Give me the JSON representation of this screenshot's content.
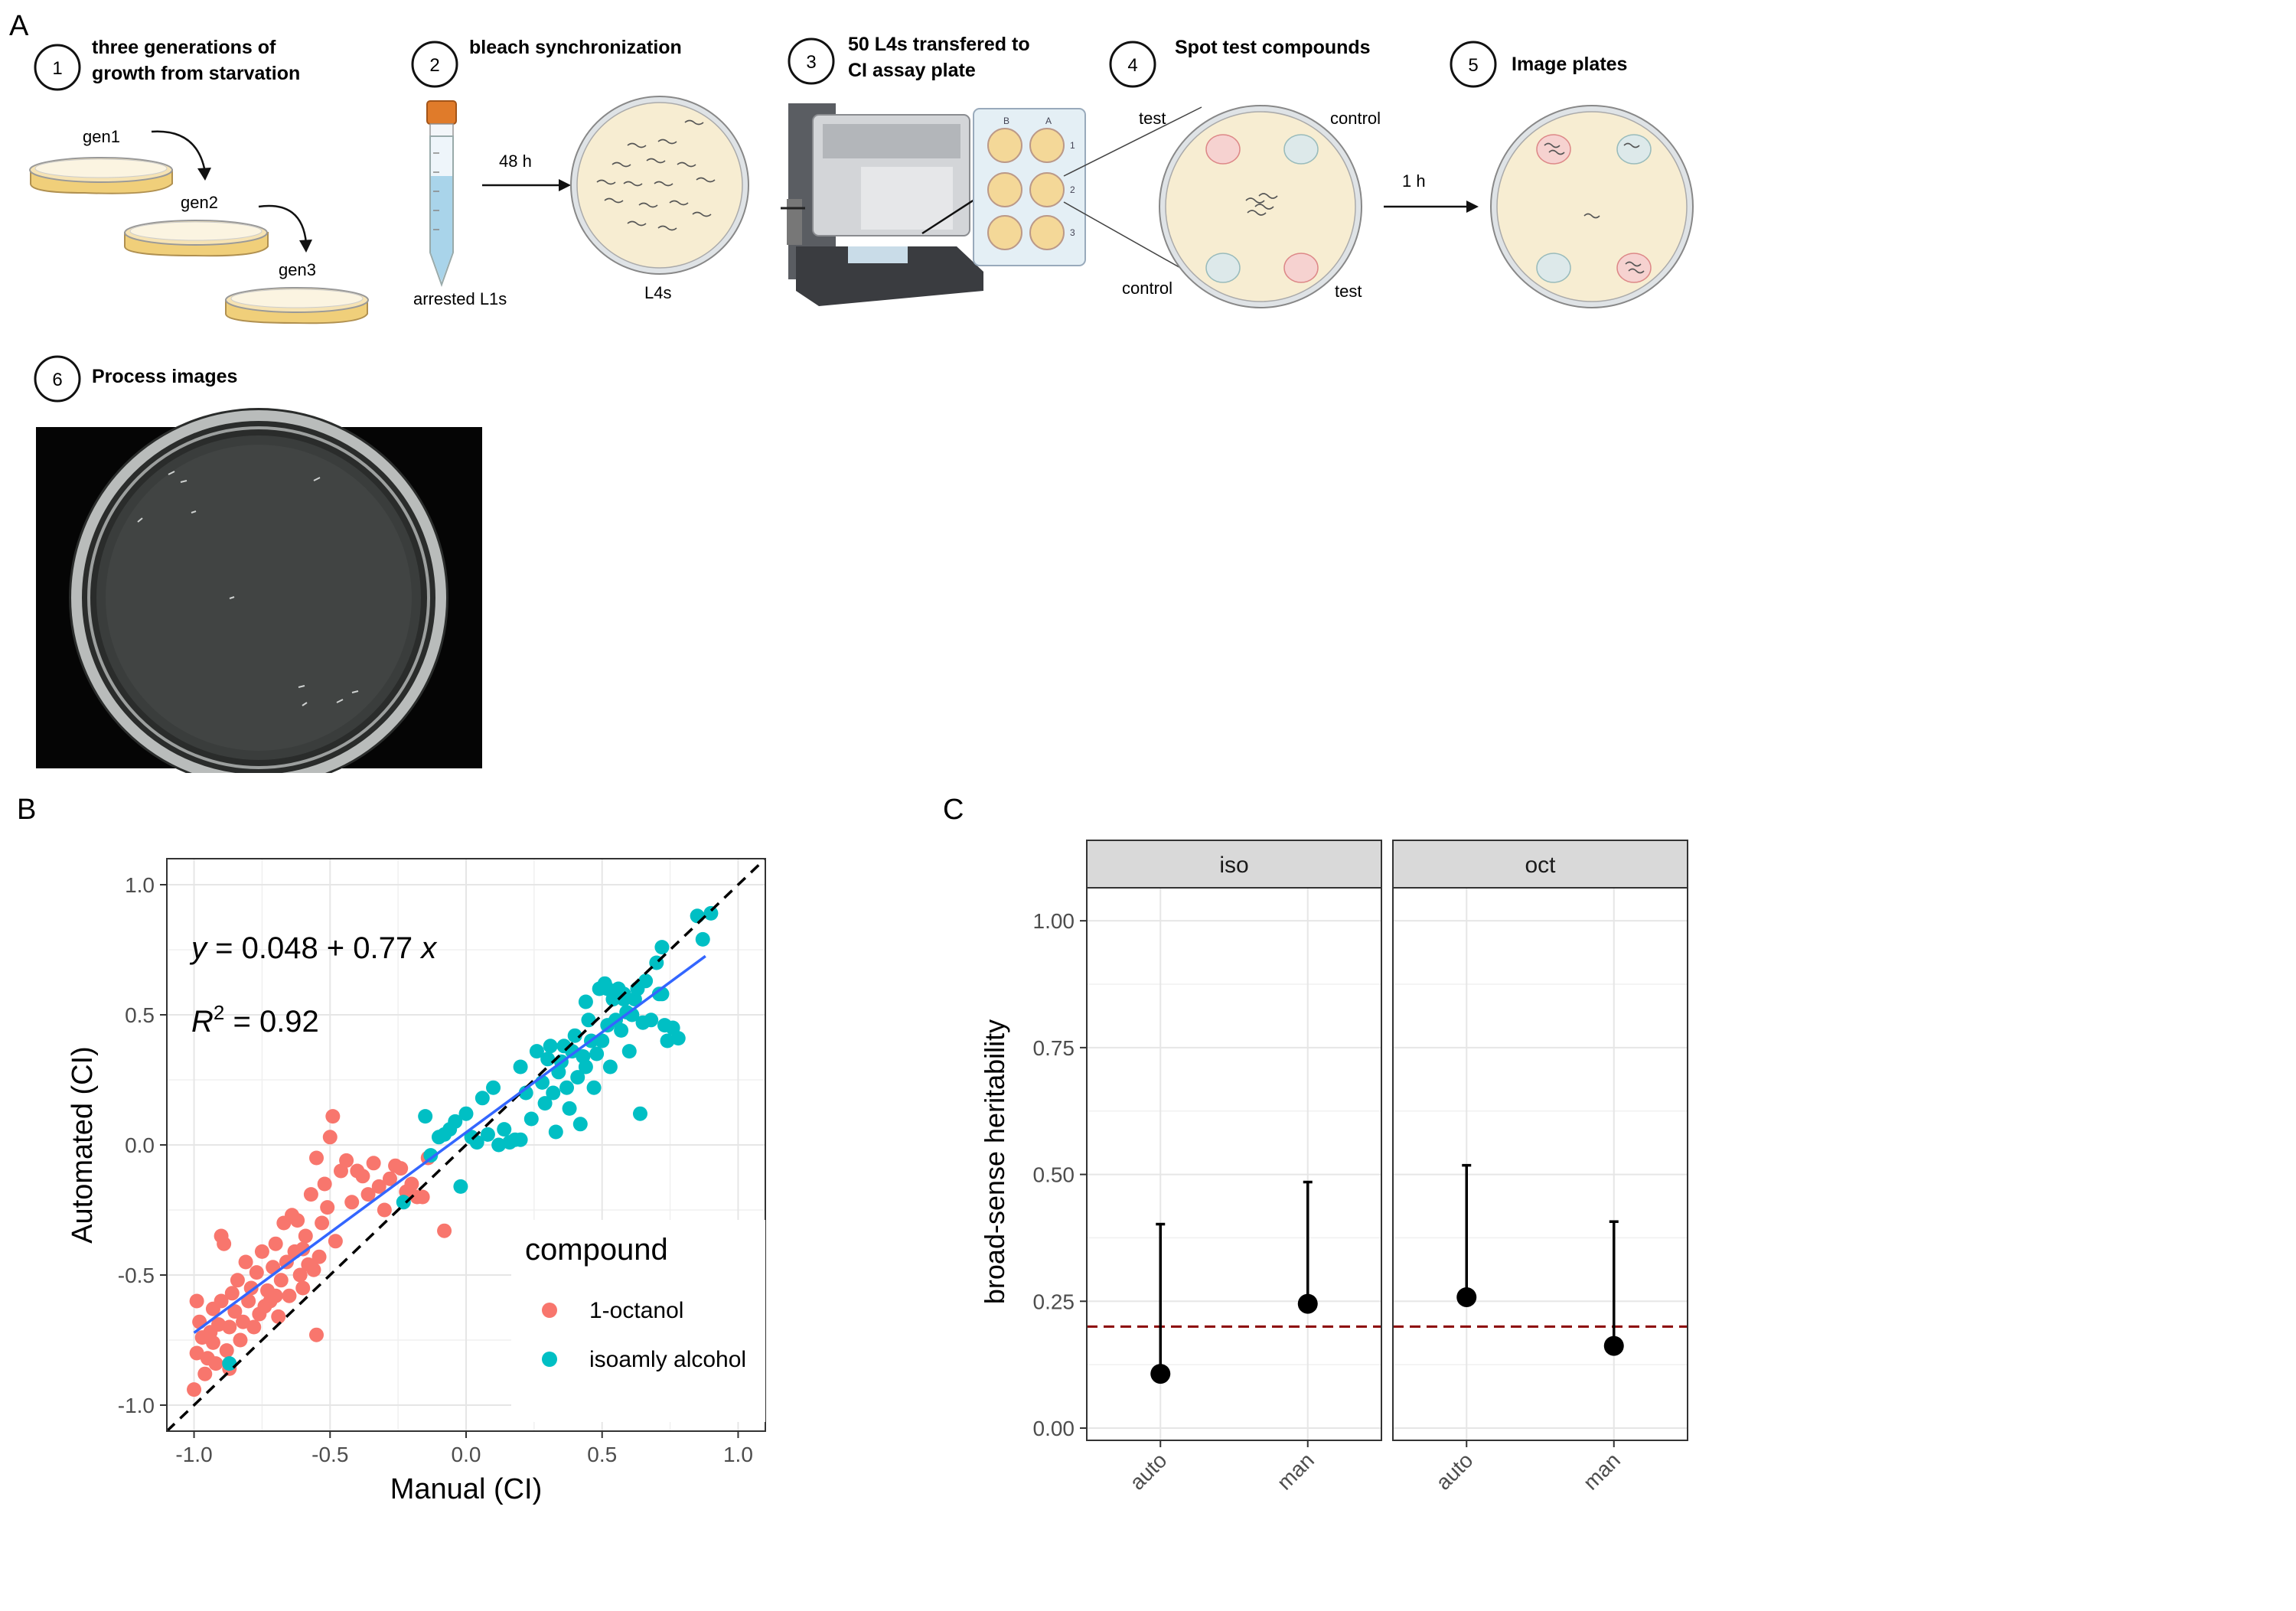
{
  "panel_a": {
    "letter": "A",
    "steps": [
      {
        "num": "1",
        "line1": "three generations of",
        "line2": "growth from starvation"
      },
      {
        "num": "2",
        "line1": "bleach synchronization",
        "line2": ""
      },
      {
        "num": "3",
        "line1": "50 L4s transfered to",
        "line2": "CI assay plate"
      },
      {
        "num": "4",
        "line1": "Spot test compounds",
        "line2": ""
      },
      {
        "num": "5",
        "line1": "Image plates",
        "line2": ""
      },
      {
        "num": "6",
        "line1": "Process images",
        "line2": ""
      }
    ],
    "gens": [
      "gen1",
      "gen2",
      "gen3"
    ],
    "tube_label": "arrested L1s",
    "time_48h": "48 h",
    "plate_label": "L4s",
    "well_labels": [
      "B",
      "A",
      "1",
      "2",
      "3"
    ],
    "spot_labels": {
      "test_top": "test",
      "control_top": "control",
      "control_bottom": "control",
      "test_bottom": "test"
    },
    "time_1h": "1 h"
  },
  "panel_b": {
    "letter": "B",
    "equation": {
      "y": "y",
      "eq": " = 0.048 + 0.77 ",
      "x": "x"
    },
    "r2": {
      "R": "R",
      "sup": "2",
      "rest": " = 0.92"
    },
    "legend_title": "compound",
    "colors": {
      "octanol": "#F8766D",
      "isoamyl": "#00BFC4",
      "fit": "#3366FF",
      "identity": "#000000"
    },
    "chart_data": {
      "type": "scatter",
      "xlabel": "Manual (CI)",
      "ylabel": "Automated (CI)",
      "xlim": [
        -1.1,
        1.1
      ],
      "ylim": [
        -1.1,
        1.1
      ],
      "xticks": [
        "-1.0",
        "-0.5",
        "0.0",
        "0.5",
        "1.0"
      ],
      "yticks": [
        "-1.0",
        "-0.5",
        "0.0",
        "0.5",
        "1.0"
      ],
      "grid": true,
      "legend_position": "bottom-right",
      "fit": {
        "intercept": 0.048,
        "slope": 0.77,
        "x_range": [
          -1.0,
          0.88
        ]
      },
      "identity_line": true,
      "series": [
        {
          "name": "1-octanol",
          "points": [
            [
              -1.0,
              -0.94
            ],
            [
              -0.99,
              -0.8
            ],
            [
              -0.99,
              -0.6
            ],
            [
              -0.98,
              -0.68
            ],
            [
              -0.97,
              -0.74
            ],
            [
              -0.96,
              -0.88
            ],
            [
              -0.95,
              -0.82
            ],
            [
              -0.94,
              -0.72
            ],
            [
              -0.93,
              -0.63
            ],
            [
              -0.93,
              -0.76
            ],
            [
              -0.92,
              -0.84
            ],
            [
              -0.91,
              -0.69
            ],
            [
              -0.9,
              -0.6
            ],
            [
              -0.9,
              -0.35
            ],
            [
              -0.89,
              -0.38
            ],
            [
              -0.88,
              -0.79
            ],
            [
              -0.87,
              -0.7
            ],
            [
              -0.87,
              -0.86
            ],
            [
              -0.86,
              -0.57
            ],
            [
              -0.85,
              -0.64
            ],
            [
              -0.84,
              -0.52
            ],
            [
              -0.83,
              -0.75
            ],
            [
              -0.82,
              -0.68
            ],
            [
              -0.81,
              -0.45
            ],
            [
              -0.8,
              -0.6
            ],
            [
              -0.79,
              -0.55
            ],
            [
              -0.78,
              -0.7
            ],
            [
              -0.77,
              -0.49
            ],
            [
              -0.76,
              -0.65
            ],
            [
              -0.75,
              -0.41
            ],
            [
              -0.74,
              -0.62
            ],
            [
              -0.73,
              -0.56
            ],
            [
              -0.72,
              -0.6
            ],
            [
              -0.71,
              -0.47
            ],
            [
              -0.7,
              -0.38
            ],
            [
              -0.69,
              -0.66
            ],
            [
              -0.68,
              -0.52
            ],
            [
              -0.67,
              -0.3
            ],
            [
              -0.66,
              -0.45
            ],
            [
              -0.65,
              -0.58
            ],
            [
              -0.64,
              -0.27
            ],
            [
              -0.63,
              -0.41
            ],
            [
              -0.62,
              -0.29
            ],
            [
              -0.61,
              -0.5
            ],
            [
              -0.6,
              -0.55
            ],
            [
              -0.59,
              -0.35
            ],
            [
              -0.58,
              -0.46
            ],
            [
              -0.57,
              -0.19
            ],
            [
              -0.56,
              -0.48
            ],
            [
              -0.55,
              -0.05
            ],
            [
              -0.54,
              -0.43
            ],
            [
              -0.53,
              -0.3
            ],
            [
              -0.52,
              -0.15
            ],
            [
              -0.51,
              -0.24
            ],
            [
              -0.5,
              0.03
            ],
            [
              -0.49,
              0.11
            ],
            [
              -0.48,
              -0.37
            ],
            [
              -0.46,
              -0.1
            ],
            [
              -0.44,
              -0.06
            ],
            [
              -0.42,
              -0.22
            ],
            [
              -0.4,
              -0.1
            ],
            [
              -0.38,
              -0.12
            ],
            [
              -0.36,
              -0.19
            ],
            [
              -0.34,
              -0.07
            ],
            [
              -0.32,
              -0.16
            ],
            [
              -0.3,
              -0.25
            ],
            [
              -0.28,
              -0.13
            ],
            [
              -0.26,
              -0.08
            ],
            [
              -0.24,
              -0.09
            ],
            [
              -0.22,
              -0.18
            ],
            [
              -0.2,
              -0.15
            ],
            [
              -0.18,
              -0.2
            ],
            [
              -0.16,
              -0.2
            ],
            [
              -0.14,
              -0.05
            ],
            [
              -0.08,
              -0.33
            ],
            [
              -0.55,
              -0.73
            ],
            [
              -0.6,
              -0.4
            ],
            [
              -0.7,
              -0.58
            ]
          ]
        },
        {
          "name": "isoamly alcohol",
          "points": [
            [
              -0.87,
              -0.84
            ],
            [
              -0.23,
              -0.22
            ],
            [
              -0.15,
              0.11
            ],
            [
              -0.13,
              -0.04
            ],
            [
              -0.1,
              0.03
            ],
            [
              -0.08,
              0.04
            ],
            [
              -0.06,
              0.06
            ],
            [
              -0.04,
              0.09
            ],
            [
              -0.02,
              -0.16
            ],
            [
              0.0,
              0.12
            ],
            [
              0.02,
              0.03
            ],
            [
              0.04,
              0.01
            ],
            [
              0.06,
              0.18
            ],
            [
              0.08,
              0.04
            ],
            [
              0.1,
              0.22
            ],
            [
              0.12,
              0.0
            ],
            [
              0.14,
              0.06
            ],
            [
              0.16,
              0.01
            ],
            [
              0.18,
              0.02
            ],
            [
              0.2,
              0.02
            ],
            [
              0.2,
              0.3
            ],
            [
              0.22,
              0.2
            ],
            [
              0.24,
              0.1
            ],
            [
              0.26,
              0.36
            ],
            [
              0.28,
              0.24
            ],
            [
              0.29,
              0.16
            ],
            [
              0.3,
              0.33
            ],
            [
              0.31,
              0.38
            ],
            [
              0.32,
              0.2
            ],
            [
              0.33,
              0.05
            ],
            [
              0.34,
              0.28
            ],
            [
              0.35,
              0.32
            ],
            [
              0.36,
              0.38
            ],
            [
              0.37,
              0.22
            ],
            [
              0.38,
              0.14
            ],
            [
              0.39,
              0.36
            ],
            [
              0.4,
              0.42
            ],
            [
              0.41,
              0.26
            ],
            [
              0.42,
              0.08
            ],
            [
              0.43,
              0.34
            ],
            [
              0.44,
              0.3
            ],
            [
              0.45,
              0.48
            ],
            [
              0.46,
              0.4
            ],
            [
              0.47,
              0.22
            ],
            [
              0.48,
              0.35
            ],
            [
              0.49,
              0.6
            ],
            [
              0.5,
              0.4
            ],
            [
              0.51,
              0.62
            ],
            [
              0.52,
              0.46
            ],
            [
              0.53,
              0.3
            ],
            [
              0.54,
              0.56
            ],
            [
              0.55,
              0.48
            ],
            [
              0.56,
              0.6
            ],
            [
              0.57,
              0.44
            ],
            [
              0.58,
              0.58
            ],
            [
              0.59,
              0.51
            ],
            [
              0.6,
              0.36
            ],
            [
              0.61,
              0.5
            ],
            [
              0.62,
              0.56
            ],
            [
              0.63,
              0.6
            ],
            [
              0.64,
              0.12
            ],
            [
              0.65,
              0.47
            ],
            [
              0.66,
              0.63
            ],
            [
              0.68,
              0.48
            ],
            [
              0.7,
              0.7
            ],
            [
              0.71,
              0.58
            ],
            [
              0.72,
              0.58
            ],
            [
              0.73,
              0.46
            ],
            [
              0.74,
              0.4
            ],
            [
              0.76,
              0.45
            ],
            [
              0.78,
              0.41
            ],
            [
              0.85,
              0.88
            ],
            [
              0.87,
              0.79
            ],
            [
              0.9,
              0.89
            ],
            [
              0.72,
              0.76
            ],
            [
              0.52,
              0.6
            ],
            [
              0.58,
              0.56
            ],
            [
              0.44,
              0.55
            ]
          ]
        }
      ]
    }
  },
  "panel_c": {
    "letter": "C",
    "ref_color": "#8B0000",
    "chart_data": {
      "type": "scatter",
      "ylabel": "broad-sense heritability",
      "ylim": [
        0,
        1.05
      ],
      "yticks": [
        "0.00",
        "0.25",
        "0.50",
        "0.75",
        "1.00"
      ],
      "grid": true,
      "reference_line": 0.2,
      "facets": [
        {
          "label": "iso",
          "categories": [
            "auto",
            "man"
          ],
          "values": [
            0.107,
            0.245
          ],
          "upper": [
            0.402,
            0.485
          ]
        },
        {
          "label": "oct",
          "categories": [
            "auto",
            "man"
          ],
          "values": [
            0.258,
            0.162
          ],
          "upper": [
            0.518,
            0.407
          ]
        }
      ]
    }
  }
}
